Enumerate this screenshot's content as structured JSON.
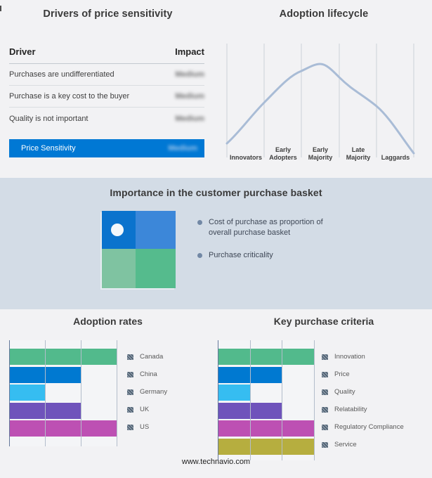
{
  "page": {
    "footer": "www.technavio.com"
  },
  "colors": {
    "highlight_blue": "#0078d4",
    "middle_band_bg": "#d3dce6",
    "curve": "#a9bcd6",
    "lifecycle_grid": "#ccd1d9",
    "bar_axis": "#64789b",
    "bar_grid": "#b3bdcb"
  },
  "panels": {
    "drivers": {
      "title": "Drivers of price sensitivity",
      "columns": {
        "driver": "Driver",
        "impact": "Impact"
      },
      "rows": [
        {
          "driver": "Purchases are undifferentiated",
          "impact": "Medium",
          "impact_blurred": true,
          "highlighted": false
        },
        {
          "driver": "Purchase is a key cost to the buyer",
          "impact": "Medium",
          "impact_blurred": true,
          "highlighted": false
        },
        {
          "driver": "Quality is not important",
          "impact": "Medium",
          "impact_blurred": true,
          "highlighted": false
        },
        {
          "driver": "Price Sensitivity",
          "impact": "Medium",
          "impact_blurred": true,
          "highlighted": true
        }
      ]
    },
    "basket": {
      "title": "Importance in the customer purchase basket",
      "bullets": [
        "Cost of purchase as proportion of overall purchase basket",
        "Purchase criticality"
      ],
      "quadrant_colors": {
        "top_left": "#0b73cd",
        "top_right": "#3c87d9",
        "bottom_left": "#7fc3a1",
        "bottom_right": "#55bb8d"
      },
      "dot_quadrant": "top_left"
    }
  },
  "chart_data": [
    {
      "type": "line",
      "title": "Adoption lifecycle",
      "categories": [
        "Innovators",
        "Early Adopters",
        "Early Majority",
        "Late Majority",
        "Laggards"
      ],
      "description": "Bell-shaped adoption curve over five adopter segments separated by vertical gridlines; no numeric axes.",
      "curve_points_normalized_x_y": [
        [
          0,
          0.15
        ],
        [
          0.2,
          0.49
        ],
        [
          0.4,
          0.77
        ],
        [
          0.5,
          0.83
        ],
        [
          0.6,
          0.71
        ],
        [
          0.8,
          0.46
        ],
        [
          1,
          0.06
        ]
      ],
      "line_color": "#a9bcd6",
      "grid": true,
      "legend": "none"
    },
    {
      "type": "bar",
      "orientation": "horizontal",
      "title": "Adoption rates",
      "categories": [
        "Canada",
        "China",
        "Germany",
        "UK",
        "US"
      ],
      "values": [
        3,
        2,
        1,
        2,
        3
      ],
      "xlim": [
        0,
        3
      ],
      "xlabel": "",
      "ylabel": "",
      "axis_tick_labels": "none (3 unlabeled gridlines)",
      "colors": [
        "#52ba8c",
        "#0079d1",
        "#36bdf1",
        "#6f53bb",
        "#bd50b3"
      ],
      "legend_position": "right",
      "legend_marker": "hatched dark-slate square"
    },
    {
      "type": "bar",
      "orientation": "horizontal",
      "title": "Key purchase criteria",
      "categories": [
        "Innovation",
        "Price",
        "Quality",
        "Relatability",
        "Regulatory Compliance",
        "Service"
      ],
      "values": [
        3,
        2,
        1,
        2,
        3,
        3
      ],
      "xlim": [
        0,
        3
      ],
      "xlabel": "",
      "ylabel": "",
      "axis_tick_labels": "none (3 unlabeled gridlines)",
      "colors": [
        "#52ba8c",
        "#0079d1",
        "#36bdf1",
        "#6f53bb",
        "#bd50b3",
        "#b6ae3f"
      ],
      "legend_position": "right",
      "legend_marker": "hatched dark-slate square"
    }
  ]
}
